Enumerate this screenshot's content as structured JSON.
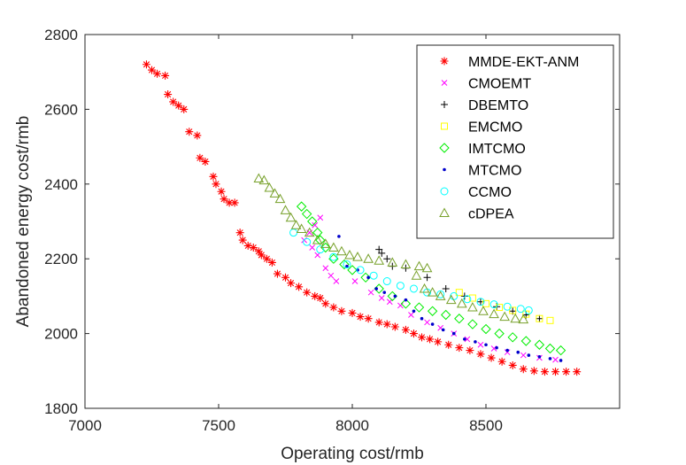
{
  "chart_data": {
    "type": "scatter",
    "title": "",
    "xlabel": "Operating cost/rmb",
    "ylabel": "Abandoned energy cost/rmb",
    "xlim": [
      7000,
      9000
    ],
    "ylim": [
      1800,
      2800
    ],
    "xticks": [
      "7000",
      "7500",
      "8000",
      "8500"
    ],
    "yticks": [
      "1800",
      "2000",
      "2200",
      "2400",
      "2600",
      "2800"
    ],
    "grid": false,
    "legend_position": "top-right",
    "series": [
      {
        "name": "MMDE-EKT-ANM",
        "marker": "asterisk",
        "color": "#ff0000",
        "points": [
          [
            7230,
            2720
          ],
          [
            7250,
            2705
          ],
          [
            7270,
            2695
          ],
          [
            7300,
            2690
          ],
          [
            7310,
            2640
          ],
          [
            7330,
            2620
          ],
          [
            7350,
            2610
          ],
          [
            7370,
            2600
          ],
          [
            7390,
            2540
          ],
          [
            7420,
            2530
          ],
          [
            7430,
            2470
          ],
          [
            7450,
            2460
          ],
          [
            7480,
            2420
          ],
          [
            7490,
            2400
          ],
          [
            7510,
            2380
          ],
          [
            7520,
            2360
          ],
          [
            7540,
            2350
          ],
          [
            7560,
            2350
          ],
          [
            7580,
            2270
          ],
          [
            7590,
            2250
          ],
          [
            7610,
            2235
          ],
          [
            7630,
            2230
          ],
          [
            7650,
            2220
          ],
          [
            7660,
            2210
          ],
          [
            7680,
            2200
          ],
          [
            7700,
            2190
          ],
          [
            7720,
            2160
          ],
          [
            7750,
            2150
          ],
          [
            7770,
            2135
          ],
          [
            7800,
            2125
          ],
          [
            7830,
            2110
          ],
          [
            7860,
            2100
          ],
          [
            7880,
            2095
          ],
          [
            7900,
            2080
          ],
          [
            7930,
            2070
          ],
          [
            7960,
            2060
          ],
          [
            8000,
            2055
          ],
          [
            8030,
            2045
          ],
          [
            8060,
            2040
          ],
          [
            8100,
            2030
          ],
          [
            8130,
            2025
          ],
          [
            8160,
            2018
          ],
          [
            8200,
            2010
          ],
          [
            8230,
            2000
          ],
          [
            8260,
            1990
          ],
          [
            8290,
            1985
          ],
          [
            8320,
            1978
          ],
          [
            8360,
            1970
          ],
          [
            8400,
            1962
          ],
          [
            8440,
            1955
          ],
          [
            8480,
            1945
          ],
          [
            8520,
            1935
          ],
          [
            8560,
            1925
          ],
          [
            8600,
            1915
          ],
          [
            8640,
            1905
          ],
          [
            8680,
            1900
          ],
          [
            8720,
            1898
          ],
          [
            8760,
            1898
          ],
          [
            8800,
            1898
          ],
          [
            8840,
            1898
          ]
        ]
      },
      {
        "name": "CMOEMT",
        "marker": "x",
        "color": "#ff00ff",
        "points": [
          [
            7880,
            2310
          ],
          [
            7860,
            2290
          ],
          [
            7840,
            2270
          ],
          [
            7820,
            2250
          ],
          [
            7850,
            2230
          ],
          [
            7870,
            2210
          ],
          [
            7900,
            2175
          ],
          [
            7920,
            2155
          ],
          [
            7940,
            2140
          ],
          [
            8010,
            2140
          ],
          [
            8070,
            2110
          ],
          [
            8110,
            2095
          ],
          [
            8140,
            2085
          ],
          [
            8180,
            2075
          ],
          [
            8220,
            2050
          ],
          [
            8280,
            2030
          ],
          [
            8330,
            2015
          ],
          [
            8380,
            2000
          ],
          [
            8430,
            1985
          ],
          [
            8480,
            1970
          ],
          [
            8530,
            1960
          ],
          [
            8580,
            1950
          ],
          [
            8640,
            1942
          ],
          [
            8700,
            1935
          ],
          [
            8760,
            1930
          ]
        ]
      },
      {
        "name": "DBEMTO",
        "marker": "plus",
        "color": "#000000",
        "points": [
          [
            8100,
            2225
          ],
          [
            8110,
            2215
          ],
          [
            8130,
            2200
          ],
          [
            8150,
            2180
          ],
          [
            8200,
            2175
          ],
          [
            8280,
            2150
          ],
          [
            8350,
            2120
          ],
          [
            8420,
            2100
          ],
          [
            8480,
            2085
          ],
          [
            8540,
            2072
          ],
          [
            8600,
            2060
          ],
          [
            8650,
            2050
          ],
          [
            8700,
            2040
          ]
        ]
      },
      {
        "name": "EMCMO",
        "marker": "square",
        "color": "#ffff00",
        "points": [
          [
            8400,
            2110
          ],
          [
            8450,
            2095
          ],
          [
            8500,
            2080
          ],
          [
            8550,
            2070
          ],
          [
            8600,
            2062
          ],
          [
            8650,
            2052
          ],
          [
            8700,
            2040
          ],
          [
            8740,
            2035
          ]
        ]
      },
      {
        "name": "IMTCMO",
        "marker": "diamond",
        "color": "#00ee00",
        "points": [
          [
            7810,
            2340
          ],
          [
            7830,
            2320
          ],
          [
            7850,
            2300
          ],
          [
            7870,
            2270
          ],
          [
            7880,
            2250
          ],
          [
            7900,
            2230
          ],
          [
            7930,
            2200
          ],
          [
            7970,
            2185
          ],
          [
            8000,
            2170
          ],
          [
            8050,
            2150
          ],
          [
            8100,
            2120
          ],
          [
            8150,
            2100
          ],
          [
            8200,
            2080
          ],
          [
            8250,
            2070
          ],
          [
            8300,
            2060
          ],
          [
            8350,
            2050
          ],
          [
            8400,
            2040
          ],
          [
            8450,
            2025
          ],
          [
            8500,
            2012
          ],
          [
            8550,
            2000
          ],
          [
            8600,
            1990
          ],
          [
            8650,
            1980
          ],
          [
            8700,
            1970
          ],
          [
            8740,
            1960
          ],
          [
            8780,
            1955
          ]
        ]
      },
      {
        "name": "MTCMO",
        "marker": "dot",
        "color": "#0000cc",
        "points": [
          [
            7950,
            2260
          ],
          [
            7980,
            2180
          ],
          [
            8020,
            2170
          ],
          [
            8060,
            2150
          ],
          [
            8090,
            2120
          ],
          [
            8120,
            2110
          ],
          [
            8160,
            2100
          ],
          [
            8200,
            2090
          ],
          [
            8230,
            2060
          ],
          [
            8260,
            2040
          ],
          [
            8300,
            2025
          ],
          [
            8340,
            2010
          ],
          [
            8380,
            2000
          ],
          [
            8420,
            1985
          ],
          [
            8460,
            1978
          ],
          [
            8500,
            1970
          ],
          [
            8540,
            1962
          ],
          [
            8580,
            1955
          ],
          [
            8620,
            1950
          ],
          [
            8660,
            1942
          ],
          [
            8700,
            1938
          ],
          [
            8740,
            1933
          ],
          [
            8780,
            1928
          ]
        ]
      },
      {
        "name": "CCMO",
        "marker": "circle",
        "color": "#00ffff",
        "points": [
          [
            7780,
            2270
          ],
          [
            7830,
            2245
          ],
          [
            7880,
            2225
          ],
          [
            7930,
            2205
          ],
          [
            7980,
            2185
          ],
          [
            8030,
            2170
          ],
          [
            8080,
            2155
          ],
          [
            8130,
            2140
          ],
          [
            8180,
            2128
          ],
          [
            8230,
            2120
          ],
          [
            8280,
            2110
          ],
          [
            8330,
            2105
          ],
          [
            8380,
            2100
          ],
          [
            8430,
            2092
          ],
          [
            8480,
            2085
          ],
          [
            8530,
            2078
          ],
          [
            8580,
            2072
          ],
          [
            8630,
            2066
          ],
          [
            8660,
            2062
          ]
        ]
      },
      {
        "name": "cDPEA",
        "marker": "triangle",
        "color": "#77a02a",
        "points": [
          [
            7650,
            2415
          ],
          [
            7670,
            2410
          ],
          [
            7690,
            2390
          ],
          [
            7710,
            2375
          ],
          [
            7730,
            2360
          ],
          [
            7750,
            2330
          ],
          [
            7770,
            2310
          ],
          [
            7790,
            2290
          ],
          [
            7810,
            2280
          ],
          [
            7840,
            2270
          ],
          [
            7870,
            2250
          ],
          [
            7900,
            2240
          ],
          [
            7930,
            2230
          ],
          [
            7960,
            2220
          ],
          [
            7990,
            2210
          ],
          [
            8020,
            2205
          ],
          [
            8060,
            2200
          ],
          [
            8100,
            2195
          ],
          [
            8150,
            2190
          ],
          [
            8200,
            2185
          ],
          [
            8250,
            2180
          ],
          [
            8280,
            2175
          ],
          [
            8240,
            2155
          ],
          [
            8270,
            2120
          ],
          [
            8300,
            2110
          ],
          [
            8330,
            2100
          ],
          [
            8370,
            2090
          ],
          [
            8410,
            2080
          ],
          [
            8450,
            2070
          ],
          [
            8490,
            2060
          ],
          [
            8530,
            2052
          ],
          [
            8570,
            2045
          ],
          [
            8610,
            2040
          ],
          [
            8640,
            2038
          ]
        ]
      }
    ]
  }
}
